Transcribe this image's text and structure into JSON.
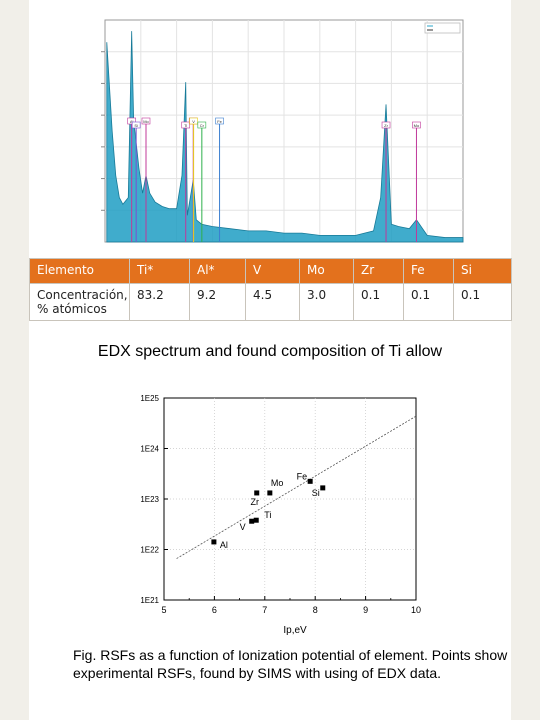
{
  "edx_chart": {
    "type": "line",
    "legend_entries": [
      "",
      ""
    ],
    "element_markers": [
      {
        "label": "Mo",
        "x": 2.29,
        "color": "#c0389a"
      },
      {
        "label": "Ti",
        "x": 4.51,
        "color": "#c0389a"
      },
      {
        "label": "Al",
        "x": 1.49,
        "color": "#c0389a"
      },
      {
        "label": "Mo",
        "x": 17.4,
        "color": "#c0389a"
      },
      {
        "label": "Ti",
        "x": 4.93,
        "color": "#c0389a"
      },
      {
        "label": "Si",
        "x": 1.74,
        "color": "#7b4fd0"
      },
      {
        "label": "V",
        "x": 4.95,
        "color": "#e8d21a"
      },
      {
        "label": "Zr",
        "x": 15.7,
        "color": "#c0389a"
      },
      {
        "label": "Fe",
        "x": 6.4,
        "color": "#3b7ed0"
      },
      {
        "label": "Cr",
        "x": 5.41,
        "color": "#2db04b"
      }
    ],
    "chart_data": {
      "type": "area",
      "xlim": [
        0,
        20
      ],
      "ylim": [
        0,
        1
      ],
      "x": [
        0.1,
        0.4,
        0.6,
        0.8,
        1.0,
        1.3,
        1.49,
        1.6,
        1.9,
        2.1,
        2.29,
        2.5,
        2.8,
        3.2,
        3.6,
        4.0,
        4.3,
        4.51,
        4.6,
        4.93,
        5.1,
        5.4,
        6.0,
        7.0,
        8.0,
        9.0,
        10.0,
        11.0,
        12.0,
        13.0,
        14.0,
        15.0,
        15.4,
        15.7,
        16.0,
        16.4,
        17.0,
        17.4,
        18.0,
        19.0,
        20.0
      ],
      "values": [
        0.9,
        0.5,
        0.3,
        0.2,
        0.17,
        0.2,
        0.95,
        0.55,
        0.33,
        0.22,
        0.3,
        0.22,
        0.18,
        0.16,
        0.15,
        0.15,
        0.3,
        0.72,
        0.12,
        0.28,
        0.1,
        0.08,
        0.07,
        0.06,
        0.05,
        0.05,
        0.04,
        0.04,
        0.03,
        0.03,
        0.03,
        0.05,
        0.2,
        0.62,
        0.08,
        0.07,
        0.06,
        0.1,
        0.03,
        0.02,
        0.02
      ]
    }
  },
  "table": {
    "headers": [
      "Elemento",
      "Ti*",
      "Al*",
      "V",
      "Mo",
      "Zr",
      "Fe",
      "Si"
    ],
    "row_label": "Concentración, % atómicos",
    "values": [
      "83.2",
      "9.2",
      "4.5",
      "3.0",
      "0.1",
      "0.1",
      "0.1"
    ]
  },
  "edx_caption": "EDX spectrum and found composition of Ti allow",
  "chart_data": {
    "type": "scatter",
    "xlabel": "Ip,eV",
    "ylabel": "",
    "xlim": [
      5,
      10
    ],
    "ylim": [
      21,
      25
    ],
    "yscale": "log",
    "xticks": [
      "5",
      "6",
      "7",
      "8",
      "9",
      "10"
    ],
    "yticks": [
      "1E21",
      "1E22",
      "1E23",
      "1E24",
      "1E25"
    ],
    "grid": true,
    "series": [
      {
        "points": [
          {
            "label": "Al",
            "x": 5.99,
            "y": 22.15
          },
          {
            "label": "Ti",
            "x": 6.83,
            "y": 22.58
          },
          {
            "label": "V",
            "x": 6.74,
            "y": 22.56
          },
          {
            "label": "Zr",
            "x": 6.84,
            "y": 23.12
          },
          {
            "label": "Mo",
            "x": 7.1,
            "y": 23.12
          },
          {
            "label": "Fe",
            "x": 7.9,
            "y": 23.35
          },
          {
            "label": "Si",
            "x": 8.15,
            "y": 23.22
          }
        ]
      }
    ],
    "fit_line": {
      "x": [
        5.25,
        10.0
      ],
      "y": [
        21.82,
        24.64
      ]
    }
  },
  "rsf_caption": "Fig. RSFs as a function of Ionization potential of element. Points show experimental RSFs, found  by SIMS with using of EDX data."
}
